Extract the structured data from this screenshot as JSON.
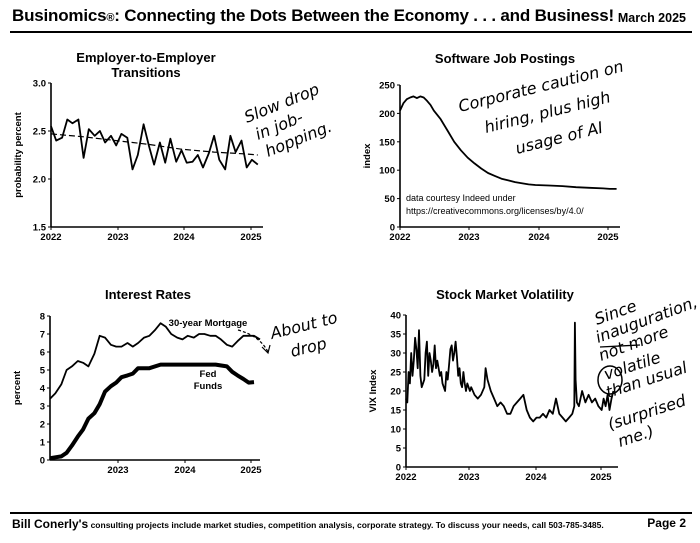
{
  "header": {
    "title": "Businomics",
    "reg": "®",
    "title_rest": ": Connecting the Dots Between the Economy . . . and Business!",
    "date": "March 2025"
  },
  "footer": {
    "name": "Bill Conerly's",
    "text": " consulting projects include market studies, competition analysis, corporate strategy.  To discuss your needs, call 503-785-3485.",
    "page": "Page 2"
  },
  "chart_data": [
    {
      "id": "c1",
      "type": "line",
      "title": [
        "Employer-to-Employer",
        "Transitions"
      ],
      "ylabel": "probability percent",
      "xlabel": "",
      "ylim": [
        1.5,
        3.0
      ],
      "yticks": [
        "1.5",
        "2.0",
        "2.5",
        "3.0"
      ],
      "xticks": [
        "2022",
        "2023",
        "2024",
        "2025"
      ],
      "xlim": [
        2022,
        2025.25
      ],
      "series": [
        {
          "x": [
            2022.0,
            2022.08,
            2022.17,
            2022.25,
            2022.33,
            2022.42,
            2022.5,
            2022.58,
            2022.67,
            2022.75,
            2022.83,
            2022.92,
            2023.0,
            2023.08,
            2023.17,
            2023.25,
            2023.33,
            2023.42,
            2023.5,
            2023.58,
            2023.67,
            2023.75,
            2023.83,
            2023.92,
            2024.0,
            2024.08,
            2024.17,
            2024.25,
            2024.33,
            2024.42,
            2024.5,
            2024.58,
            2024.67,
            2024.75,
            2024.83,
            2024.92,
            2025.0
          ],
          "values": [
            2.55,
            2.4,
            2.43,
            2.62,
            2.58,
            2.62,
            2.22,
            2.52,
            2.45,
            2.5,
            2.38,
            2.45,
            2.35,
            2.47,
            2.43,
            2.1,
            2.25,
            2.57,
            2.35,
            2.15,
            2.38,
            2.17,
            2.42,
            2.18,
            2.3,
            2.17,
            2.18,
            2.25,
            2.12,
            2.27,
            2.45,
            2.2,
            2.1,
            2.45,
            2.28,
            2.4,
            2.12
          ],
          "extra": [
            2025.08,
            2.2,
            2025.17,
            2.15
          ]
        },
        {
          "name": "trend",
          "x": [
            2022.0,
            2022.5,
            2023.0,
            2023.5,
            2024.0,
            2024.5,
            2025.0,
            2025.17
          ],
          "values": [
            2.47,
            2.44,
            2.4,
            2.36,
            2.31,
            2.28,
            2.26,
            2.25
          ]
        }
      ],
      "annotation": [
        "Slow drop",
        "in job-",
        "hopping."
      ]
    },
    {
      "id": "c2",
      "type": "line",
      "title": [
        "Software Job Postings"
      ],
      "ylabel": "index",
      "ylim": [
        0,
        250
      ],
      "yticks": [
        "0",
        "50",
        "100",
        "150",
        "200",
        "250"
      ],
      "xticks": [
        "2022",
        "2023",
        "2024",
        "2025"
      ],
      "xlim": [
        2022,
        2025.25
      ],
      "series": [
        {
          "x": [
            2022.0,
            2022.05,
            2022.1,
            2022.15,
            2022.2,
            2022.25,
            2022.3,
            2022.35,
            2022.4,
            2022.45,
            2022.5,
            2022.6,
            2022.7,
            2022.8,
            2022.9,
            2023.0,
            2023.1,
            2023.2,
            2023.3,
            2023.4,
            2023.5,
            2023.6,
            2023.7,
            2023.8,
            2023.9,
            2024.0,
            2024.2,
            2024.4,
            2024.6,
            2024.8,
            2025.0,
            2025.1,
            2025.2
          ],
          "values": [
            205,
            218,
            225,
            228,
            230,
            227,
            230,
            228,
            222,
            215,
            205,
            190,
            170,
            150,
            135,
            122,
            112,
            103,
            95,
            90,
            85,
            82,
            79,
            77,
            75,
            74,
            73,
            72,
            70,
            69,
            68,
            67,
            67
          ]
        }
      ],
      "note": [
        "data courtesy Indeed under",
        "https://creativecommons.org/licenses/by/4.0/"
      ],
      "annotation": [
        "Corporate caution on",
        "hiring, plus high",
        "usage of AI"
      ]
    },
    {
      "id": "c3",
      "type": "line",
      "title": [
        "Interest Rates"
      ],
      "ylabel": "percent",
      "ylim": [
        0,
        8
      ],
      "yticks": [
        "0",
        "1",
        "2",
        "3",
        "4",
        "5",
        "6",
        "7",
        "8"
      ],
      "xticks": [
        "2023",
        "2024",
        "2025"
      ],
      "xlim": [
        2022,
        2025.17
      ],
      "series": [
        {
          "name": "30-year Mortgage",
          "x": [
            2022.0,
            2022.08,
            2022.17,
            2022.25,
            2022.33,
            2022.42,
            2022.5,
            2022.58,
            2022.67,
            2022.75,
            2022.83,
            2022.92,
            2023.0,
            2023.08,
            2023.17,
            2023.25,
            2023.33,
            2023.42,
            2023.5,
            2023.58,
            2023.67,
            2023.75,
            2023.83,
            2023.92,
            2024.0,
            2024.08,
            2024.17,
            2024.25,
            2024.33,
            2024.42,
            2024.5,
            2024.58,
            2024.67,
            2024.75,
            2024.83,
            2024.92,
            2025.0,
            2025.08,
            2025.17
          ],
          "values": [
            3.4,
            3.7,
            4.2,
            5.0,
            5.2,
            5.5,
            5.4,
            5.2,
            5.9,
            6.9,
            6.8,
            6.4,
            6.3,
            6.3,
            6.5,
            6.3,
            6.5,
            6.8,
            6.9,
            7.2,
            7.6,
            7.4,
            7.0,
            6.8,
            6.7,
            6.9,
            6.8,
            7.0,
            7.0,
            6.9,
            6.9,
            6.7,
            6.4,
            6.3,
            6.6,
            6.9,
            6.9,
            6.9,
            6.7
          ]
        },
        {
          "name": "Fed Funds",
          "width": 4,
          "x": [
            2022.0,
            2022.17,
            2022.25,
            2022.33,
            2022.42,
            2022.5,
            2022.58,
            2022.67,
            2022.75,
            2022.83,
            2022.92,
            2023.0,
            2023.08,
            2023.17,
            2023.25,
            2023.33,
            2023.5,
            2023.67,
            2024.0,
            2024.5,
            2024.67,
            2024.75,
            2024.83,
            2024.92,
            2025.0,
            2025.08
          ],
          "values": [
            0.1,
            0.2,
            0.4,
            0.8,
            1.3,
            1.7,
            2.3,
            2.6,
            3.1,
            3.8,
            4.1,
            4.3,
            4.6,
            4.7,
            4.8,
            5.1,
            5.1,
            5.3,
            5.3,
            5.3,
            5.2,
            4.9,
            4.7,
            4.5,
            4.3,
            4.33
          ]
        }
      ],
      "series_labels": [
        "30-year Mortgage",
        "Fed",
        "Funds"
      ],
      "annotation": [
        "About to",
        "drop"
      ]
    },
    {
      "id": "c4",
      "type": "line",
      "title": [
        "Stock Market Volatility"
      ],
      "ylabel": "VIX Index",
      "ylim": [
        0,
        40
      ],
      "yticks": [
        "0",
        "5",
        "10",
        "15",
        "20",
        "25",
        "30",
        "35",
        "40"
      ],
      "xticks": [
        "2022",
        "2023",
        "2024",
        "2025"
      ],
      "xlim": [
        2022,
        2025.25
      ],
      "series": [
        {
          "x": [
            2022.0,
            2022.02,
            2022.04,
            2022.06,
            2022.08,
            2022.1,
            2022.12,
            2022.14,
            2022.16,
            2022.18,
            2022.2,
            2022.22,
            2022.24,
            2022.26,
            2022.28,
            2022.3,
            2022.32,
            2022.34,
            2022.36,
            2022.38,
            2022.4,
            2022.42,
            2022.44,
            2022.46,
            2022.48,
            2022.5,
            2022.52,
            2022.54,
            2022.56,
            2022.58,
            2022.6,
            2022.62,
            2022.64,
            2022.66,
            2022.68,
            2022.7,
            2022.72,
            2022.74,
            2022.76,
            2022.78,
            2022.8,
            2022.82,
            2022.84,
            2022.86,
            2022.88,
            2022.9,
            2022.92,
            2022.94,
            2022.96,
            2022.98,
            2023.0,
            2023.05,
            2023.1,
            2023.15,
            2023.2,
            2023.22,
            2023.25,
            2023.3,
            2023.35,
            2023.4,
            2023.45,
            2023.5,
            2023.55,
            2023.6,
            2023.65,
            2023.7,
            2023.75,
            2023.8,
            2023.85,
            2023.9,
            2023.95,
            2024.0,
            2024.05,
            2024.1,
            2024.15,
            2024.2,
            2024.25,
            2024.3,
            2024.35,
            2024.4,
            2024.45,
            2024.5,
            2024.55,
            2024.58,
            2024.59,
            2024.6,
            2024.62,
            2024.65,
            2024.7,
            2024.75,
            2024.8,
            2024.85,
            2024.9,
            2024.95,
            2025.0,
            2025.03,
            2025.06,
            2025.09,
            2025.12,
            2025.15,
            2025.18
          ],
          "values": [
            18,
            17,
            25,
            22,
            30,
            24,
            28,
            34,
            31,
            26,
            36,
            24,
            21,
            22,
            23,
            30,
            33,
            24,
            30,
            28,
            25,
            27,
            32,
            26,
            28,
            26,
            24,
            25,
            22,
            21,
            20,
            25,
            23,
            27,
            31,
            32,
            28,
            30,
            33,
            29,
            24,
            26,
            22,
            21,
            25,
            22,
            20,
            22,
            21,
            20,
            21,
            19,
            18,
            19,
            21,
            26,
            23,
            20,
            18,
            16,
            17,
            16,
            14,
            14,
            16,
            17,
            18,
            19,
            15,
            13,
            12,
            13,
            13,
            14,
            13,
            15,
            14,
            18,
            14,
            13,
            12,
            13,
            14,
            16,
            38,
            23,
            17,
            16,
            20,
            17,
            19,
            17,
            18,
            16,
            15,
            18,
            16,
            19,
            15,
            18,
            20
          ]
        }
      ],
      "annotation": [
        "Since",
        "inauguration,",
        "not more",
        "volatile",
        "than usual",
        "(surprised",
        "me.)"
      ]
    }
  ]
}
